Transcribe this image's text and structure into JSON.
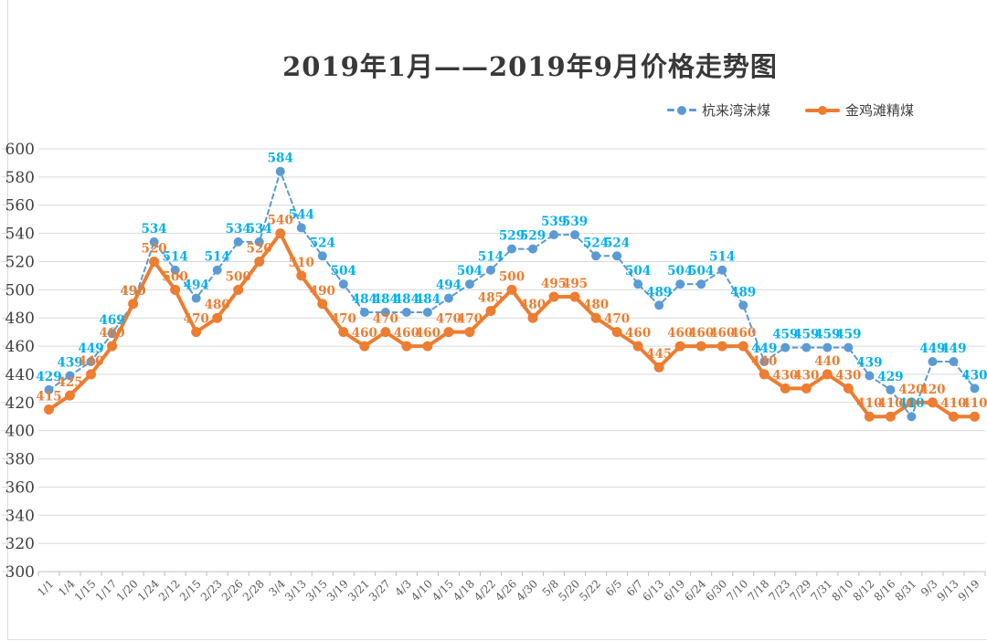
{
  "title": "2019年1月——2019年9月价格走势图",
  "legend": {
    "items": [
      {
        "label": "杭来湾沫煤",
        "marker": "dashed-dot"
      },
      {
        "label": "金鸡滩精煤",
        "marker": "solid-dot"
      }
    ]
  },
  "chart_data": {
    "type": "line",
    "title": "2019年1月——2019年9月价格走势图",
    "categories": [
      "1/1",
      "1/4",
      "1/15",
      "1/17",
      "1/20",
      "1/24",
      "2/12",
      "2/15",
      "2/23",
      "2/26",
      "2/28",
      "3/4",
      "3/13",
      "3/15",
      "3/19",
      "3/21",
      "3/27",
      "4/3",
      "4/10",
      "4/15",
      "4/18",
      "4/22",
      "4/26",
      "4/30",
      "5/8",
      "5/20",
      "5/22",
      "6/5",
      "6/7",
      "6/13",
      "6/19",
      "6/24",
      "6/30",
      "7/10",
      "7/18",
      "7/23",
      "7/29",
      "7/31",
      "8/10",
      "8/12",
      "8/16",
      "8/31",
      "9/3",
      "9/13",
      "9/19"
    ],
    "series": [
      {
        "name": "杭来湾沫煤",
        "style": "dashed",
        "line_color": "#5b9bd5",
        "point_color": "#5b9bd5",
        "label_color": "#00b0f0",
        "values": [
          429,
          439,
          449,
          469,
          490,
          534,
          514,
          494,
          514,
          534,
          534,
          584,
          544,
          524,
          504,
          484,
          484,
          484,
          484,
          494,
          504,
          514,
          529,
          529,
          539,
          539,
          524,
          524,
          504,
          489,
          504,
          504,
          514,
          489,
          449,
          459,
          459,
          459,
          459,
          439,
          429,
          410,
          449,
          449,
          430
        ]
      },
      {
        "name": "金鸡滩精煤",
        "style": "solid",
        "line_color": "#ed7d31",
        "point_color": "#ed7d31",
        "label_color": "#ed7d31",
        "values": [
          415,
          425,
          440,
          460,
          490,
          520,
          500,
          470,
          480,
          500,
          520,
          540,
          510,
          490,
          470,
          460,
          470,
          460,
          460,
          470,
          470,
          485,
          500,
          480,
          495,
          495,
          480,
          470,
          460,
          445,
          460,
          460,
          460,
          460,
          440,
          430,
          430,
          440,
          430,
          410,
          410,
          420,
          420,
          410,
          410
        ]
      }
    ],
    "ylim": [
      300,
      600
    ],
    "yticks": [
      300,
      320,
      340,
      360,
      380,
      400,
      420,
      440,
      460,
      480,
      500,
      520,
      540,
      560,
      580,
      600
    ],
    "grid": true,
    "data_labels": true,
    "legend_position": "top-right",
    "colors": {
      "gridline": "#d9d9d9",
      "axis": "#bfbfbf",
      "axis_text": "#595959",
      "ytick_text": "#404040",
      "title_text": "#383838"
    }
  }
}
